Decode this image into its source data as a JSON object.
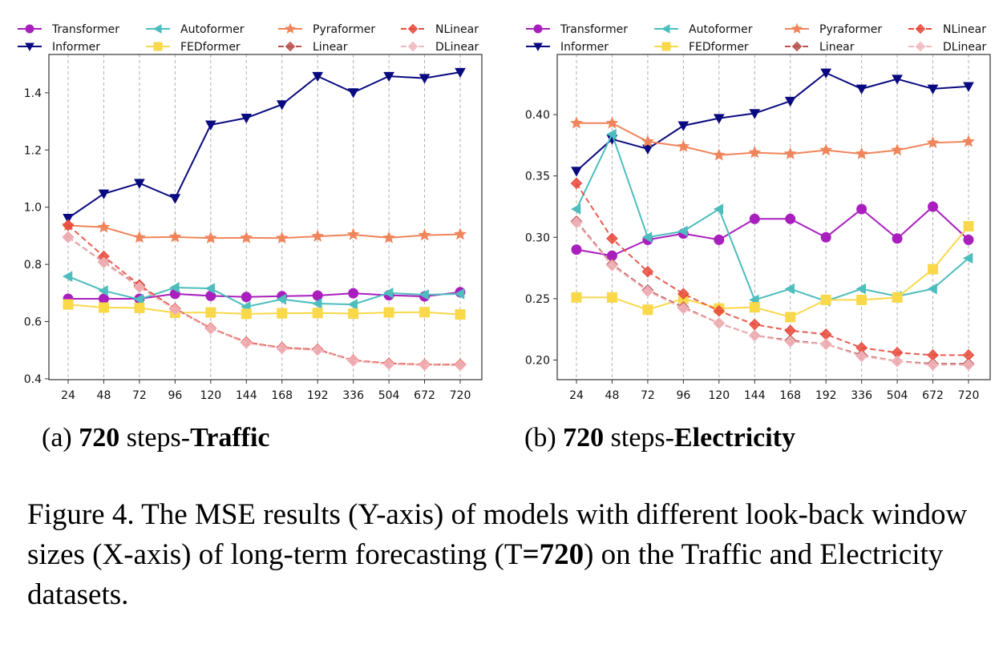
{
  "chart_data": [
    {
      "type": "line",
      "x": [
        "24",
        "48",
        "72",
        "96",
        "120",
        "144",
        "168",
        "192",
        "336",
        "504",
        "672",
        "720"
      ],
      "ylim": [
        0.397,
        1.534
      ],
      "yticks": [
        "0.4",
        "0.6",
        "0.8",
        "1.0",
        "1.2",
        "1.4"
      ],
      "grid": "vertical dashed",
      "legend": "top",
      "subcaption": {
        "prefix": "(a) ",
        "bold1": "720",
        "mid": " steps-",
        "bold2": "Traffic"
      },
      "series": [
        {
          "name": "Transformer",
          "color": "#a91fbd",
          "marker": "circle",
          "dash": false,
          "values": [
            0.68,
            0.68,
            0.68,
            0.697,
            0.69,
            0.686,
            0.689,
            0.691,
            0.699,
            0.692,
            0.688,
            0.703
          ]
        },
        {
          "name": "Informer",
          "color": "#0a0a80",
          "marker": "triangle-down",
          "dash": false,
          "values": [
            0.962,
            1.047,
            1.084,
            1.031,
            1.288,
            1.312,
            1.359,
            1.458,
            1.401,
            1.458,
            1.451,
            1.472
          ]
        },
        {
          "name": "Autoformer",
          "color": "#4dbdbd",
          "marker": "triangle-left",
          "dash": false,
          "values": [
            0.758,
            0.708,
            0.678,
            0.719,
            0.716,
            0.652,
            0.678,
            0.663,
            0.66,
            0.7,
            0.694,
            0.697
          ]
        },
        {
          "name": "FEDformer",
          "color": "#f9d84a",
          "marker": "square",
          "dash": false,
          "values": [
            0.66,
            0.649,
            0.648,
            0.631,
            0.632,
            0.627,
            0.629,
            0.63,
            0.628,
            0.632,
            0.633,
            0.625
          ]
        },
        {
          "name": "Pyraformer",
          "color": "#f0845a",
          "marker": "star",
          "dash": false,
          "values": [
            0.936,
            0.93,
            0.894,
            0.896,
            0.892,
            0.893,
            0.892,
            0.898,
            0.904,
            0.893,
            0.902,
            0.905
          ]
        },
        {
          "name": "Linear",
          "color": "#b8524e",
          "marker": "diamond",
          "dash": true,
          "values": [
            0.895,
            0.808,
            0.724,
            0.645,
            0.577,
            0.527,
            0.509,
            0.503,
            0.463,
            0.453,
            0.449,
            0.449
          ]
        },
        {
          "name": "NLinear",
          "color": "#e84a3c",
          "marker": "diamond",
          "dash": true,
          "values": [
            0.937,
            0.828,
            0.728,
            0.645,
            0.577,
            0.528,
            0.508,
            0.502,
            0.465,
            0.454,
            0.45,
            0.45
          ]
        },
        {
          "name": "DLinear",
          "color": "#f2b8bf",
          "marker": "diamond",
          "dash": true,
          "values": [
            0.894,
            0.806,
            0.72,
            0.642,
            0.575,
            0.525,
            0.506,
            0.5,
            0.463,
            0.451,
            0.448,
            0.447
          ]
        }
      ]
    },
    {
      "type": "line",
      "x": [
        "24",
        "48",
        "72",
        "96",
        "120",
        "144",
        "168",
        "192",
        "336",
        "504",
        "672",
        "720"
      ],
      "ylim": [
        0.184,
        0.449
      ],
      "yticks": [
        "0.20",
        "0.25",
        "0.30",
        "0.35",
        "0.40"
      ],
      "grid": "vertical dashed",
      "legend": "top",
      "subcaption": {
        "prefix": "(b) ",
        "bold1": "720",
        "mid": " steps-",
        "bold2": "Electricity"
      },
      "series": [
        {
          "name": "Transformer",
          "color": "#a91fbd",
          "marker": "circle",
          "dash": false,
          "values": [
            0.29,
            0.285,
            0.298,
            0.303,
            0.298,
            0.315,
            0.315,
            0.3,
            0.323,
            0.299,
            0.325,
            0.298
          ]
        },
        {
          "name": "Informer",
          "color": "#0a0a80",
          "marker": "triangle-down",
          "dash": false,
          "values": [
            0.354,
            0.38,
            0.372,
            0.391,
            0.397,
            0.401,
            0.411,
            0.434,
            0.421,
            0.429,
            0.421,
            0.423
          ]
        },
        {
          "name": "Autoformer",
          "color": "#4dbdbd",
          "marker": "triangle-left",
          "dash": false,
          "values": [
            0.323,
            0.384,
            0.3,
            0.305,
            0.323,
            0.249,
            0.258,
            0.248,
            0.258,
            0.252,
            0.258,
            0.283
          ]
        },
        {
          "name": "FEDformer",
          "color": "#f9d84a",
          "marker": "square",
          "dash": false,
          "values": [
            0.251,
            0.251,
            0.241,
            0.25,
            0.242,
            0.243,
            0.235,
            0.249,
            0.249,
            0.251,
            0.274,
            0.309
          ]
        },
        {
          "name": "Pyraformer",
          "color": "#f0845a",
          "marker": "star",
          "dash": false,
          "values": [
            0.393,
            0.393,
            0.378,
            0.374,
            0.367,
            0.369,
            0.368,
            0.371,
            0.368,
            0.371,
            0.377,
            0.378
          ]
        },
        {
          "name": "Linear",
          "color": "#b8524e",
          "marker": "diamond",
          "dash": true,
          "values": [
            0.313,
            0.278,
            0.257,
            0.243,
            0.23,
            0.22,
            0.216,
            0.213,
            0.204,
            0.199,
            0.197,
            0.197
          ]
        },
        {
          "name": "NLinear",
          "color": "#e84a3c",
          "marker": "diamond",
          "dash": true,
          "values": [
            0.344,
            0.299,
            0.272,
            0.254,
            0.24,
            0.229,
            0.224,
            0.221,
            0.21,
            0.206,
            0.204,
            0.204
          ]
        },
        {
          "name": "DLinear",
          "color": "#f2b8bf",
          "marker": "diamond",
          "dash": true,
          "values": [
            0.312,
            0.277,
            0.256,
            0.242,
            0.23,
            0.22,
            0.215,
            0.213,
            0.203,
            0.199,
            0.196,
            0.196
          ]
        }
      ]
    }
  ],
  "legend_order": [
    "Transformer",
    "Autoformer",
    "Pyraformer",
    "NLinear",
    "Informer",
    "FEDformer",
    "Linear",
    "DLinear"
  ],
  "caption": {
    "part1": "Figure 4. The MSE results (Y-axis) of models with different look-back window sizes (X-axis) of long-term forecasting (T",
    "bold": "=720",
    "part2": ") on the Traffic and Electricity datasets."
  }
}
